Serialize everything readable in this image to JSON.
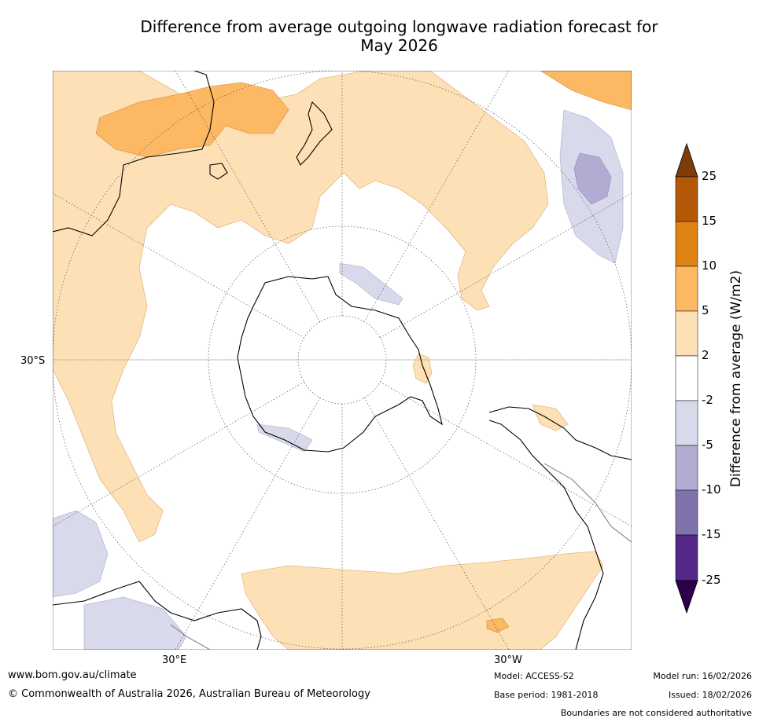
{
  "title_line1": "Difference from average outgoing longwave radiation forecast for",
  "title_line2": "May 2026",
  "axis_labels": {
    "lat": "30°S",
    "lon_e": "30°E",
    "lon_w": "30°W"
  },
  "colorbar": {
    "label": "Difference from average (W/m2)",
    "ticks": [
      "25",
      "15",
      "10",
      "5",
      "2",
      "-2",
      "-5",
      "-10",
      "-15",
      "-25"
    ],
    "colors": {
      "over": "#7f3b08",
      "b15_25": "#b35806",
      "b10_15": "#e08214",
      "b5_10": "#fdb863",
      "b2_5": "#fee0b6",
      "neutral": "#ffffff",
      "bm5_m2": "#d8daeb",
      "bm10_m5": "#b2abd2",
      "bm15_m10": "#8073ac",
      "bm25_m15": "#542788",
      "under": "#2d004b"
    }
  },
  "footer": {
    "url": "www.bom.gov.au/climate",
    "copyright": "© Commonwealth of Australia 2026, Australian Bureau of Meteorology",
    "model": "Model: ACCESS-S2",
    "base_period": "Base period: 1981-2018",
    "model_run": "Model run: 16/02/2026",
    "issued": "Issued: 18/02/2026",
    "disclaimer": "Boundaries are not considered authoritative"
  }
}
